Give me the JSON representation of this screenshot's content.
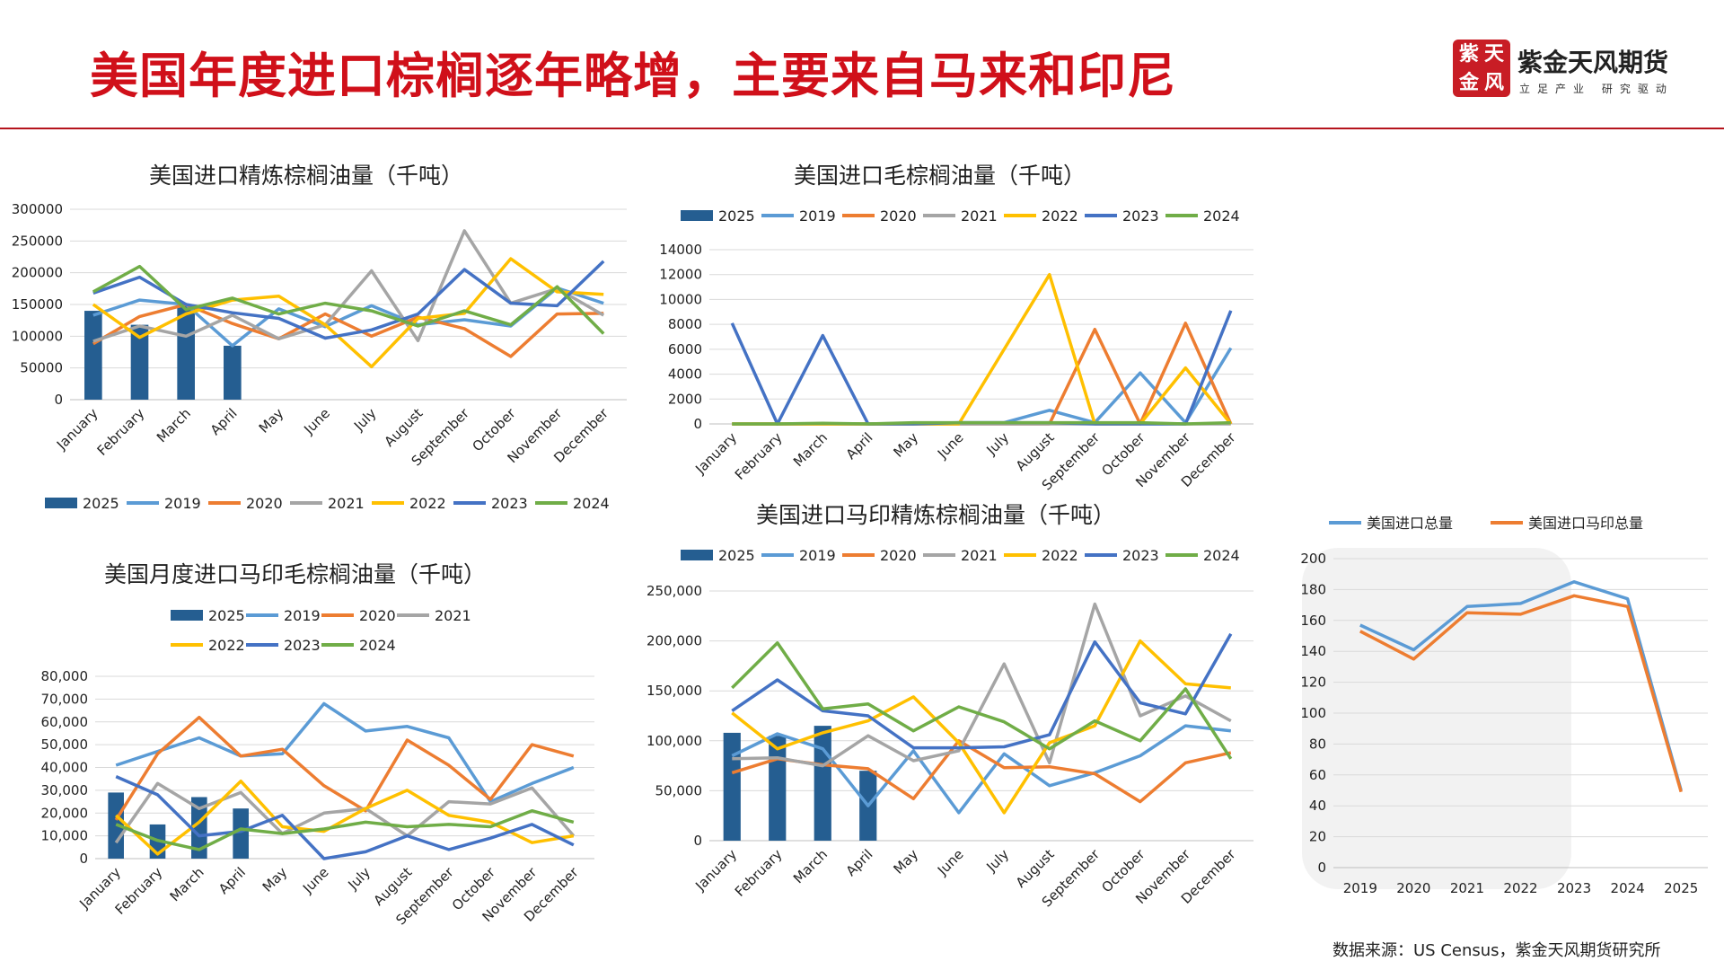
{
  "header": {
    "title": "美国年度进口棕榈逐年略增，主要来自马来和印尼",
    "brand_name": "紫金天风期货",
    "brand_slogan": "立足产业 研究驱动",
    "logo_chars": [
      "紫",
      "天",
      "金",
      "风"
    ]
  },
  "footer": {
    "source": "数据来源：US Census，紫金天风期货研究所"
  },
  "colors": {
    "title": "#d0101a",
    "rule": "#b5141c",
    "2025": "#255e91",
    "2019": "#5b9bd5",
    "2020": "#ed7d31",
    "2021": "#a5a5a5",
    "2022": "#ffc000",
    "2023": "#4472c4",
    "2024": "#70ad47"
  },
  "chart_data": [
    {
      "id": "refined",
      "type": "bar+line",
      "title": "美国进口精炼棕榈油量（千吨）",
      "categories": [
        "January",
        "February",
        "March",
        "April",
        "May",
        "June",
        "July",
        "August",
        "September",
        "October",
        "November",
        "December"
      ],
      "ylim": [
        0,
        300000
      ],
      "yticks": [
        "0",
        "50000",
        "100000",
        "150000",
        "200000",
        "250000",
        "300000"
      ],
      "legend_position": "bottom",
      "bar_series": {
        "name": "2025",
        "values": [
          140000,
          118000,
          150000,
          85000
        ]
      },
      "series": [
        {
          "name": "2019",
          "values": [
            133000,
            157000,
            150000,
            85000,
            143000,
            115000,
            148000,
            118000,
            126000,
            116000,
            176000,
            152000
          ]
        },
        {
          "name": "2020",
          "values": [
            88000,
            131000,
            150000,
            120000,
            96000,
            135000,
            100000,
            130000,
            112000,
            68000,
            135000,
            136000
          ]
        },
        {
          "name": "2021",
          "values": [
            92000,
            116000,
            100000,
            133000,
            96000,
            118000,
            203000,
            93000,
            266000,
            152000,
            175000,
            133000
          ]
        },
        {
          "name": "2022",
          "values": [
            150000,
            98000,
            135000,
            157000,
            163000,
            118000,
            52000,
            128000,
            136000,
            222000,
            170000,
            166000
          ]
        },
        {
          "name": "2023",
          "values": [
            168000,
            193000,
            150000,
            137000,
            128000,
            97000,
            110000,
            135000,
            205000,
            152000,
            148000,
            218000
          ]
        },
        {
          "name": "2024",
          "values": [
            170000,
            210000,
            142000,
            160000,
            135000,
            152000,
            140000,
            116000,
            140000,
            118000,
            178000,
            104000
          ]
        }
      ]
    },
    {
      "id": "crude",
      "type": "bar+line",
      "title": "美国进口毛棕榈油量（千吨）",
      "categories": [
        "January",
        "February",
        "March",
        "April",
        "May",
        "June",
        "July",
        "August",
        "September",
        "October",
        "November",
        "December"
      ],
      "ylim": [
        0,
        14000
      ],
      "yticks": [
        "0",
        "2000",
        "4000",
        "6000",
        "8000",
        "10000",
        "12000",
        "14000"
      ],
      "legend_position": "top",
      "bar_series": {
        "name": "2025",
        "values": [
          0,
          0,
          0,
          0
        ]
      },
      "series": [
        {
          "name": "2019",
          "values": [
            0,
            0,
            0,
            0,
            50,
            100,
            100,
            1100,
            100,
            4100,
            100,
            6100
          ]
        },
        {
          "name": "2020",
          "values": [
            0,
            0,
            0,
            0,
            0,
            0,
            0,
            0,
            7600,
            0,
            8100,
            0
          ]
        },
        {
          "name": "2021",
          "values": [
            0,
            0,
            0,
            0,
            0,
            0,
            0,
            0,
            0,
            0,
            0,
            0
          ]
        },
        {
          "name": "2022",
          "values": [
            0,
            0,
            0,
            0,
            0,
            0,
            6000,
            12000,
            0,
            0,
            4500,
            0
          ]
        },
        {
          "name": "2023",
          "values": [
            8100,
            0,
            7100,
            0,
            0,
            100,
            100,
            100,
            0,
            0,
            0,
            9100
          ]
        },
        {
          "name": "2024",
          "values": [
            0,
            0,
            50,
            0,
            100,
            100,
            100,
            100,
            100,
            100,
            0,
            100
          ]
        }
      ]
    },
    {
      "id": "crude-my-id",
      "type": "bar+line",
      "title": "美国月度进口马印毛棕榈油量（千吨）",
      "categories": [
        "January",
        "February",
        "March",
        "April",
        "May",
        "June",
        "July",
        "August",
        "September",
        "October",
        "November",
        "December"
      ],
      "ylim": [
        0,
        80000
      ],
      "yticks": [
        "0",
        "10,000",
        "20,000",
        "30,000",
        "40,000",
        "50,000",
        "60,000",
        "70,000",
        "80,000"
      ],
      "legend_position": "top",
      "bar_series": {
        "name": "2025",
        "values": [
          29000,
          15000,
          27000,
          22000
        ]
      },
      "series": [
        {
          "name": "2019",
          "values": [
            41000,
            47000,
            53000,
            45000,
            46000,
            68000,
            56000,
            58000,
            53000,
            25000,
            33000,
            40000
          ]
        },
        {
          "name": "2020",
          "values": [
            17000,
            46000,
            62000,
            45000,
            48000,
            32000,
            21000,
            52000,
            41000,
            26000,
            50000,
            45000
          ]
        },
        {
          "name": "2021",
          "values": [
            7000,
            33000,
            22000,
            29000,
            11000,
            20000,
            22000,
            10000,
            25000,
            24000,
            31000,
            10000
          ]
        },
        {
          "name": "2022",
          "values": [
            19000,
            2000,
            16000,
            34000,
            14000,
            12000,
            22000,
            30000,
            19000,
            16000,
            7000,
            10000
          ]
        },
        {
          "name": "2023",
          "values": [
            36000,
            28000,
            10000,
            12000,
            19000,
            0,
            3000,
            10000,
            4000,
            9000,
            15000,
            6000
          ]
        },
        {
          "name": "2024",
          "values": [
            15000,
            8000,
            4000,
            13000,
            11000,
            13000,
            16000,
            14000,
            15000,
            14000,
            21000,
            16000
          ]
        }
      ]
    },
    {
      "id": "refined-my-id",
      "type": "bar+line",
      "title": "美国进口马印精炼棕榈油量（千吨）",
      "categories": [
        "January",
        "February",
        "March",
        "April",
        "May",
        "June",
        "July",
        "August",
        "September",
        "October",
        "November",
        "December"
      ],
      "ylim": [
        0,
        250000
      ],
      "yticks": [
        "0",
        "50,000",
        "100,000",
        "150,000",
        "200,000",
        "250,000"
      ],
      "legend_position": "top",
      "bar_series": {
        "name": "2025",
        "values": [
          108000,
          105000,
          115000,
          70000
        ]
      },
      "series": [
        {
          "name": "2019",
          "values": [
            85000,
            107000,
            92000,
            35000,
            90000,
            28000,
            87000,
            55000,
            68000,
            85000,
            115000,
            110000
          ]
        },
        {
          "name": "2020",
          "values": [
            68000,
            82000,
            76000,
            72000,
            42000,
            100000,
            73000,
            74000,
            67000,
            39000,
            78000,
            88000
          ]
        },
        {
          "name": "2021",
          "values": [
            82000,
            83000,
            75000,
            105000,
            80000,
            90000,
            177000,
            78000,
            237000,
            125000,
            145000,
            120000
          ]
        },
        {
          "name": "2022",
          "values": [
            128000,
            92000,
            108000,
            120000,
            144000,
            98000,
            28000,
            98000,
            115000,
            200000,
            157000,
            153000
          ]
        },
        {
          "name": "2023",
          "values": [
            130000,
            161000,
            130000,
            125000,
            93000,
            93000,
            94000,
            106000,
            199000,
            138000,
            127000,
            207000
          ]
        },
        {
          "name": "2024",
          "values": [
            153000,
            198000,
            132000,
            137000,
            110000,
            134000,
            119000,
            92000,
            120000,
            100000,
            152000,
            82000
          ]
        }
      ]
    },
    {
      "id": "annual-total",
      "type": "line",
      "title": "",
      "categories": [
        "2019",
        "2020",
        "2021",
        "2022",
        "2023",
        "2024",
        "2025"
      ],
      "ylim": [
        0,
        200
      ],
      "yticks": [
        "0",
        "20",
        "40",
        "60",
        "80",
        "100",
        "120",
        "140",
        "160",
        "180",
        "200"
      ],
      "legend_position": "top",
      "series": [
        {
          "name": "美国进口总量",
          "values": [
            157,
            141,
            169,
            171,
            185,
            174,
            50
          ]
        },
        {
          "name": "美国进口马印总量",
          "values": [
            153,
            135,
            165,
            164,
            176,
            169,
            49
          ]
        }
      ]
    }
  ]
}
